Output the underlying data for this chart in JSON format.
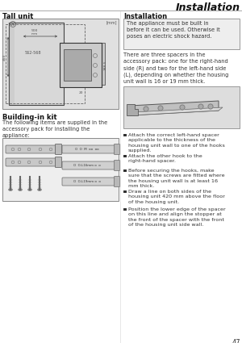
{
  "page_title": "Installation",
  "header_line_color": "#aaaaaa",
  "bg_color": "#ffffff",
  "section_left_title": "Tall unit",
  "section_left2_title": "Building-in kit",
  "section_right_title": "Installation",
  "warning_text": "The appliance must be built in\nbefore it can be used. Otherwise it\nposes an electric shock hazard.",
  "spacer_text": "There are three spacers in the\naccessory pack: one for the right-hand\nside (R) and two for the left-hand side\n(L), depending on whether the housing\nunit wall is 16 or 19 mm thick.",
  "building_kit_text": "The following items are supplied in the\naccessory pack for installing the\nappliance:",
  "bullet_points": [
    "Attach the correct left-hand spacer\napplicable to the thickness of the\nhousing unit wall to one of the hooks\nsupplied.",
    "Attach the other hook to the\nright-hand spacer.",
    "Before securing the hooks, make\nsure that the screws are fitted where\nthe housing unit wall is at least 16\nmm thick.",
    "Draw a line on both sides of the\nhousing unit 420 mm above the floor\nof the housing unit.",
    "Position the lower edge of the spacer\non this line and align the stopper at\nthe front of the spacer with the front\nof the housing unit side wall."
  ],
  "page_number": "47",
  "diagram_bg": "#e0e0e0",
  "warning_bg": "#eeeeee",
  "kit_box_bg": "#eeeeee",
  "spacer_img_bg": "#dddddd",
  "text_color": "#333333",
  "dim_color": "#555555"
}
